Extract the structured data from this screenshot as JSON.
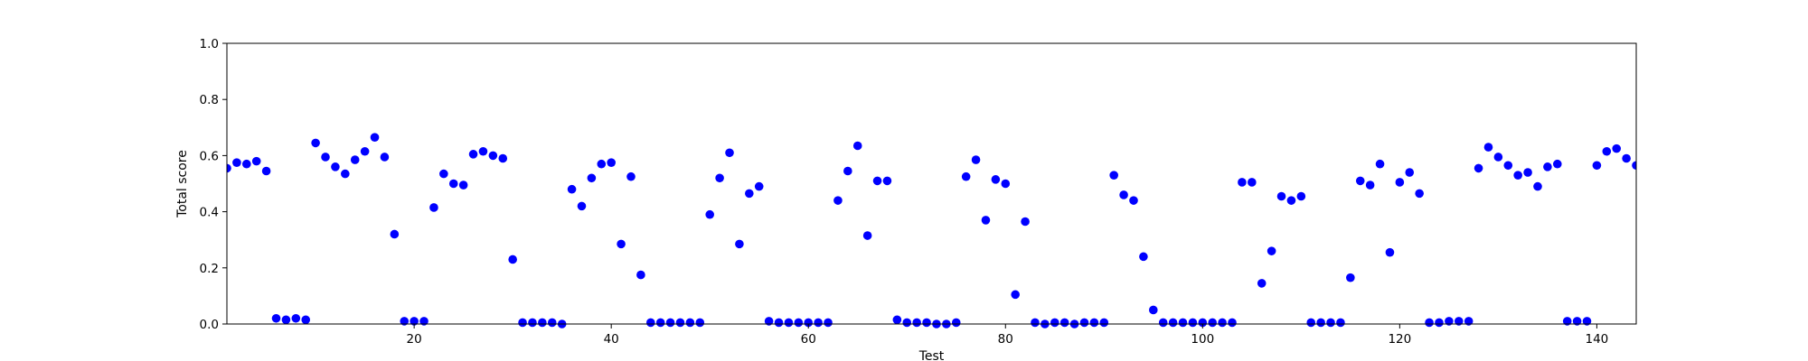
{
  "chart_data": {
    "type": "scatter",
    "title": "",
    "xlabel": "Test",
    "ylabel": "Total score",
    "xlim": [
      1,
      144
    ],
    "ylim": [
      0,
      1.0
    ],
    "xticks": [
      20,
      40,
      60,
      80,
      100,
      120,
      140
    ],
    "xtick_labels": [
      "20",
      "40",
      "60",
      "80",
      "100",
      "120",
      "140"
    ],
    "yticks": [
      0,
      0.2,
      0.4,
      0.6,
      0.8,
      1.0
    ],
    "ytick_labels": [
      "0.0",
      "0.2",
      "0.4",
      "0.6",
      "0.8",
      "1.0"
    ],
    "grid": false,
    "marker_color": "#0000ff",
    "series": [
      {
        "x": [
          1,
          2,
          3,
          4,
          5,
          6,
          7,
          8,
          9,
          10,
          11,
          12,
          13,
          14,
          15,
          16,
          17,
          18,
          19,
          20,
          21,
          22,
          23,
          24,
          25,
          26,
          27,
          28,
          29,
          30,
          31,
          32,
          33,
          34,
          35,
          36,
          37,
          38,
          39,
          40,
          41,
          42,
          43,
          44,
          45,
          46,
          47,
          48,
          49,
          50,
          51,
          52,
          53,
          54,
          55,
          56,
          57,
          58,
          59,
          60,
          61,
          62,
          63,
          64,
          65,
          66,
          67,
          68,
          69,
          70,
          71,
          72,
          73,
          74,
          75,
          76,
          77,
          78,
          79,
          80,
          81,
          82,
          83,
          84,
          85,
          86,
          87,
          88,
          89,
          90,
          91,
          92,
          93,
          94,
          95,
          96,
          97,
          98,
          99,
          100,
          101,
          102,
          103,
          104,
          105,
          106,
          107,
          108,
          109,
          110,
          111,
          112,
          113,
          114,
          115,
          116,
          117,
          118,
          119,
          120,
          121,
          122,
          123,
          124,
          125,
          126,
          127,
          128,
          129,
          130,
          131,
          132,
          133,
          134,
          135,
          136,
          137,
          138,
          139,
          140,
          141,
          142,
          143,
          144
        ],
        "y": [
          0.555,
          0.575,
          0.57,
          0.58,
          0.545,
          0.02,
          0.015,
          0.02,
          0.015,
          0.645,
          0.595,
          0.56,
          0.535,
          0.585,
          0.615,
          0.665,
          0.595,
          0.32,
          0.01,
          0.01,
          0.01,
          0.415,
          0.535,
          0.5,
          0.495,
          0.605,
          0.615,
          0.6,
          0.59,
          0.23,
          0.005,
          0.005,
          0.005,
          0.005,
          0.0,
          0.48,
          0.42,
          0.52,
          0.57,
          0.575,
          0.285,
          0.525,
          0.175,
          0.005,
          0.005,
          0.005,
          0.005,
          0.005,
          0.005,
          0.39,
          0.52,
          0.61,
          0.285,
          0.465,
          0.49,
          0.01,
          0.005,
          0.005,
          0.005,
          0.005,
          0.005,
          0.005,
          0.44,
          0.545,
          0.635,
          0.315,
          0.51,
          0.51,
          0.015,
          0.005,
          0.005,
          0.005,
          0.0,
          0.0,
          0.005,
          0.525,
          0.585,
          0.37,
          0.515,
          0.5,
          0.105,
          0.365,
          0.005,
          0.0,
          0.005,
          0.005,
          0.0,
          0.005,
          0.005,
          0.005,
          0.53,
          0.46,
          0.44,
          0.24,
          0.05,
          0.005,
          0.005,
          0.005,
          0.005,
          0.005,
          0.005,
          0.005,
          0.005,
          0.505,
          0.505,
          0.145,
          0.26,
          0.455,
          0.44,
          0.455,
          0.005,
          0.005,
          0.005,
          0.005,
          0.165,
          0.51,
          0.495,
          0.57,
          0.255,
          0.505,
          0.54,
          0.465,
          0.005,
          0.005,
          0.01,
          0.01,
          0.01,
          0.555,
          0.63,
          0.595,
          0.565,
          0.53,
          0.54,
          0.49,
          0.56,
          0.57,
          0.01,
          0.01,
          0.01,
          0.565,
          0.615,
          0.625,
          0.59,
          0.565
        ]
      }
    ]
  }
}
